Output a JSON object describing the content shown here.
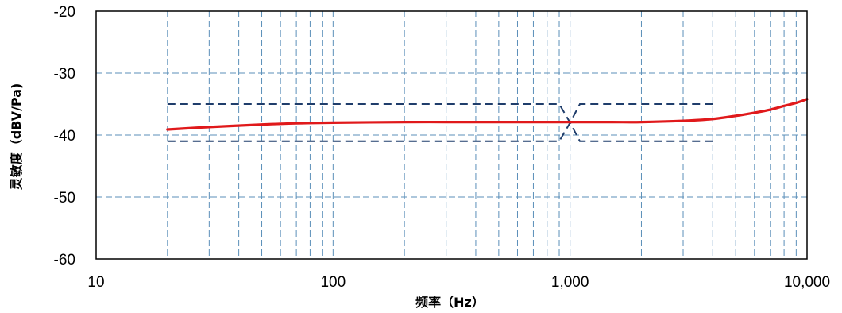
{
  "chart_data": {
    "type": "line",
    "title": "",
    "xlabel": "频率（Hz）",
    "ylabel": "灵敏度（dBV/Pa)",
    "x_scale": "log",
    "xlim": [
      10,
      10000
    ],
    "ylim": [
      -60,
      -20
    ],
    "grid": true,
    "x_ticks": [
      10,
      100,
      1000,
      10000
    ],
    "x_tick_labels": [
      "10",
      "100",
      "1,000",
      "10,000"
    ],
    "y_ticks": [
      -20,
      -30,
      -40,
      -50,
      -60
    ],
    "y_tick_labels": [
      "-20",
      "-30",
      "-40",
      "-50",
      "-60"
    ],
    "series": [
      {
        "name": "",
        "color": "#e0191b",
        "x": [
          20,
          30,
          50,
          70,
          100,
          200,
          300,
          500,
          700,
          1000,
          1500,
          2000,
          3000,
          4000,
          5000,
          6000,
          7000,
          8000,
          9000,
          10000
        ],
        "y": [
          -39.1,
          -38.7,
          -38.3,
          -38.1,
          -38.0,
          -37.9,
          -37.9,
          -37.9,
          -37.9,
          -37.9,
          -37.9,
          -37.9,
          -37.7,
          -37.4,
          -36.9,
          -36.4,
          -35.9,
          -35.3,
          -34.8,
          -34.2
        ]
      }
    ],
    "tolerance": {
      "color": "#1f3d6b",
      "x": [
        20,
        900,
        1000,
        1100,
        4000
      ],
      "upper": [
        -35,
        -35,
        -38,
        -35,
        -35
      ],
      "lower": [
        -41,
        -41,
        -38,
        -41,
        -41
      ]
    }
  }
}
